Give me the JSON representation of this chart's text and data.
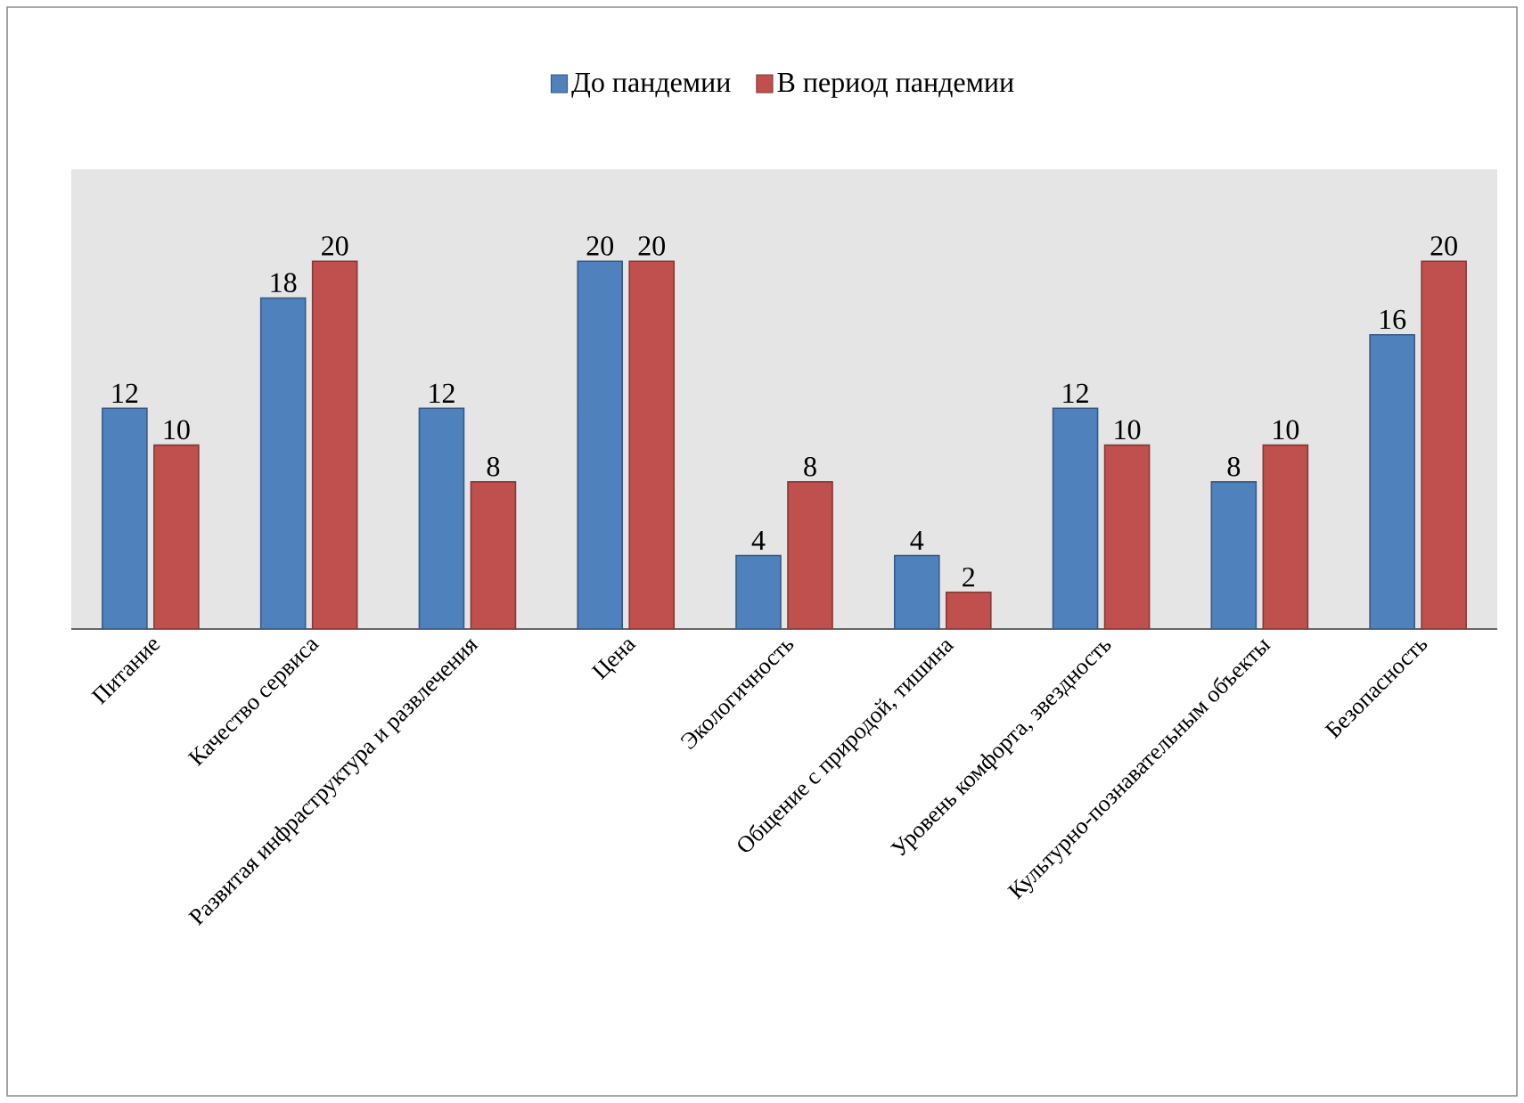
{
  "chart_data": {
    "type": "bar",
    "categories": [
      "Питание",
      "Качество сервиса",
      "Развитая инфраструктура и развлечения",
      "Цена",
      "Экологичность",
      "Общение с природой, тишина",
      "Уровень комфорта, звездность",
      "Культурно-познавательным объекты",
      "Безопасность"
    ],
    "series": [
      {
        "name": "До пандемии",
        "color": "#4f81bd",
        "values": [
          12,
          18,
          12,
          20,
          4,
          4,
          12,
          8,
          16
        ]
      },
      {
        "name": "В период пандемии",
        "color": "#c0504d",
        "values": [
          10,
          20,
          8,
          20,
          8,
          2,
          10,
          10,
          20
        ]
      }
    ],
    "data_labels": true,
    "legend": "top"
  }
}
